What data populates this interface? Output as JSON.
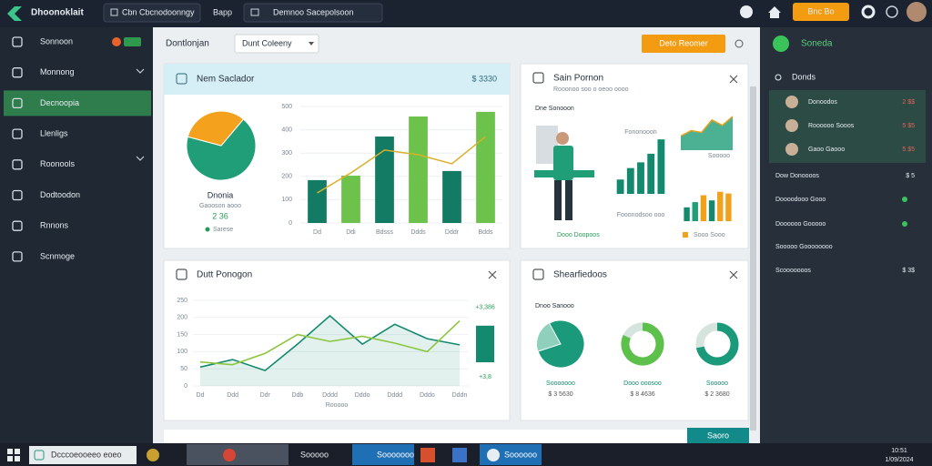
{
  "topbar": {
    "app": "Dhoonoklait",
    "tabs": [
      "Cbn Cbcnodoonngy",
      "Bapp",
      "Demnoo Sacepolsoon"
    ],
    "button": "Bnc Bo"
  },
  "sidebar": {
    "items": [
      "Sonnoon",
      "Monnong",
      "Decnoopia",
      "Llenligs",
      "Roonools",
      "Dodtoodon",
      "Rnnons",
      "Scnmoge"
    ],
    "active": 2
  },
  "header": {
    "title": "Dontlonjan",
    "dropdown": "Dunt Coleeny",
    "button": "Deto Reomer"
  },
  "sales": {
    "title": "Nem Saclador",
    "total": "$ 3330",
    "pie": {
      "type": "pie",
      "values": [
        68,
        32
      ],
      "colors": [
        "#1f9e78",
        "#f4a11d"
      ],
      "label": "Dnonia",
      "caption": "Gaooson aooo",
      "value": "2 36",
      "legend": "Sarese"
    },
    "bars": {
      "type": "bar",
      "categories": [
        "Dd",
        "Ddi",
        "Bdsss",
        "Ddds",
        "Dddr",
        "Bdds"
      ],
      "values": [
        184,
        203,
        371,
        457,
        223,
        477
      ],
      "colors": [
        "#137a63",
        "#6cc24a",
        "#137a63",
        "#6cc24a",
        "#137a63",
        "#6cc24a"
      ],
      "line": {
        "values": [
          129,
          215,
          313,
          293,
          254,
          371
        ],
        "color": "#d9b02a"
      },
      "ylim": [
        0,
        500
      ],
      "yticks": [
        0,
        100,
        200,
        300,
        400,
        500
      ],
      "grid": true
    }
  },
  "profile": {
    "title": "Sain Pornon",
    "subtitle": "Rooonoo soo o oeoo oooo",
    "tag": "Dne Sonooon",
    "chart_a": {
      "type": "bar",
      "label": "Fononooon",
      "values": [
        25,
        45,
        55,
        70,
        95
      ],
      "color": "#138a6e",
      "ylim": [
        0,
        100
      ]
    },
    "chart_b": {
      "type": "area",
      "label": "Sooooo",
      "values": [
        40,
        55,
        50,
        85,
        70,
        95
      ],
      "color": "#1f9e78",
      "line_color": "#e8a21a",
      "ylim": [
        0,
        100
      ]
    },
    "chart_c": {
      "type": "bar",
      "label": "Fooonodsoo ooo",
      "values": [
        40,
        55,
        75,
        60,
        85,
        80
      ],
      "colors": [
        "#138a6e",
        "#1f9e78",
        "#f0a21c",
        "#138a6e",
        "#f0a21c",
        "#f0a21c"
      ],
      "ylim": [
        0,
        100
      ]
    },
    "footer": "Dooo Doopoos",
    "legend": "Sooo Sooo"
  },
  "trend": {
    "type": "line",
    "title": "Dutt Ponogon",
    "xlabel": "Rooooo",
    "categories": [
      "Dd",
      "Ddd",
      "Ddr",
      "Ddb",
      "Dddd",
      "Dddo",
      "Dddd",
      "Dddo",
      "Dddn"
    ],
    "series": [
      {
        "color": "#138a6e",
        "values": [
          55,
          77,
          45,
          122,
          205,
          122,
          180,
          138,
          120
        ]
      },
      {
        "color": "#8cc63f",
        "values": [
          70,
          62,
          95,
          150,
          130,
          145,
          125,
          100,
          190
        ]
      }
    ],
    "ylim": [
      0,
      250
    ],
    "yticks": [
      0,
      50,
      100,
      150,
      200,
      250
    ],
    "grid": true,
    "bar": {
      "range": [
        69,
        176
      ],
      "color": "#138a6e",
      "top_label": "+3,386",
      "bottom_label": "+3,8"
    }
  },
  "share": {
    "title": "Shearfiedoos",
    "caption": "Dnoo Sanooo",
    "items": [
      {
        "style": "pie",
        "value": 78,
        "color": "#1a9a7a",
        "label": "Sooooooo",
        "amount": "$ 3 5630"
      },
      {
        "style": "ring",
        "value": 82,
        "color": "#5cc04a",
        "label": "Dooo ooosoo",
        "amount": "$ 8 4636"
      },
      {
        "style": "ring",
        "value": 72,
        "color": "#1a9a7a",
        "label": "Sooooo",
        "amount": "$ 2 3680"
      }
    ]
  },
  "right": {
    "title": "Soneda",
    "section": "Donds",
    "items": [
      {
        "label": "Donoodos",
        "value": "2 $$",
        "highlight": true
      },
      {
        "label": "Roooooo Sooos",
        "value": "5 $5",
        "highlight": true
      },
      {
        "label": "Gaoo Gaooo",
        "value": "5 $5",
        "highlight": true
      },
      {
        "label": "Dow Donoooos",
        "value": "$ 5",
        "highlight": false
      },
      {
        "label": "Doooodooo Gooo",
        "dot": "#39c35a",
        "highlight": false
      },
      {
        "label": "Doooooo Gooooo",
        "dot": "#39c35a",
        "highlight": false
      },
      {
        "label": "Sooooo Goooooooo",
        "highlight": false
      },
      {
        "label": "Scooooooos",
        "value": "$ 3$",
        "highlight": false
      }
    ]
  },
  "bottom_button": "Saoro",
  "taskbar": {
    "search": "Dcccoeooeeo eoeo",
    "apps": [
      "Sooooooo",
      "Soooooo",
      "Sooooo"
    ],
    "time": "10:51",
    "date": "1/09/2024"
  }
}
